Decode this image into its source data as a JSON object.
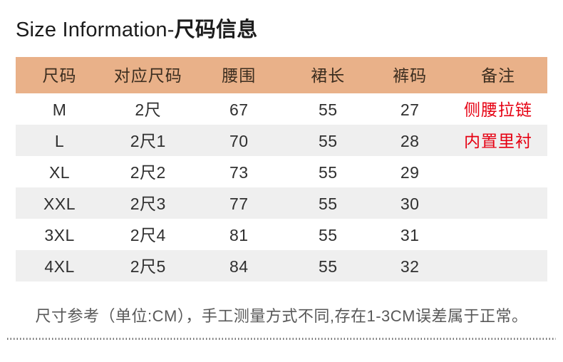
{
  "title": {
    "en": "Size Information-",
    "zh": "尺码信息"
  },
  "table": {
    "headers": [
      "尺码",
      "对应尺码",
      "腰围",
      "裙长",
      "裤码",
      "备注"
    ],
    "rows": [
      [
        "M",
        "2尺",
        "67",
        "55",
        "27",
        "侧腰拉链"
      ],
      [
        "L",
        "2尺1",
        "70",
        "55",
        "28",
        "内置里衬"
      ],
      [
        "XL",
        "2尺2",
        "73",
        "55",
        "29",
        ""
      ],
      [
        "XXL",
        "2尺3",
        "77",
        "55",
        "30",
        ""
      ],
      [
        "3XL",
        "2尺4",
        "81",
        "55",
        "31",
        ""
      ],
      [
        "4XL",
        "2尺5",
        "84",
        "55",
        "32",
        ""
      ]
    ]
  },
  "footer": {
    "note": "尺寸参考（单位:CM），手工测量方式不同,存在1-3CM误差属于正常。"
  },
  "colors": {
    "header_bg": "#e9b189",
    "header_text": "#3b2d1f",
    "stripe_bg": "#efefef",
    "remark_red": "#e60012",
    "body_text": "#2f2f2f",
    "note_text": "#585858"
  }
}
